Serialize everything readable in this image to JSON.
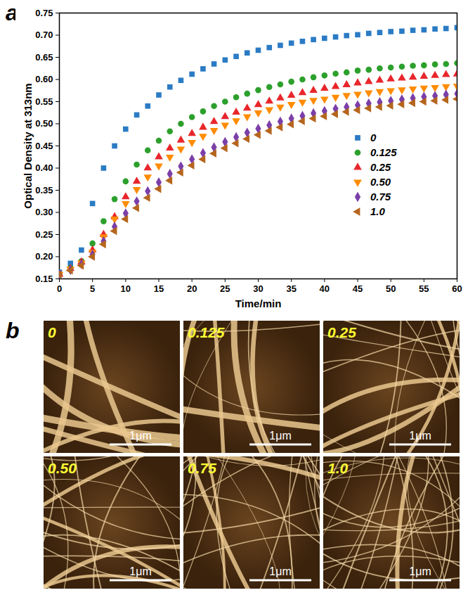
{
  "chart_data": {
    "type": "scatter",
    "panel_label": "a",
    "x_label": "Time/min",
    "y_label": "Optical Density at 313nm",
    "x": [
      0,
      1.67,
      3.33,
      5,
      6.67,
      8.33,
      10,
      11.67,
      13.33,
      15,
      16.67,
      18.33,
      20,
      21.67,
      23.33,
      25,
      26.67,
      28.33,
      30,
      31.67,
      33.33,
      35,
      36.67,
      38.33,
      40,
      41.67,
      43.33,
      45,
      46.67,
      48.33,
      50,
      51.67,
      53.33,
      55,
      56.67,
      58.33,
      60
    ],
    "series": [
      {
        "name": "0",
        "color": "#2b7bc4",
        "marker": "square",
        "values": [
          0.165,
          0.185,
          0.215,
          0.32,
          0.4,
          0.45,
          0.488,
          0.52,
          0.54,
          0.565,
          0.583,
          0.598,
          0.612,
          0.624,
          0.635,
          0.644,
          0.652,
          0.66,
          0.666,
          0.672,
          0.677,
          0.682,
          0.686,
          0.69,
          0.693,
          0.696,
          0.699,
          0.701,
          0.704,
          0.706,
          0.708,
          0.709,
          0.711,
          0.712,
          0.714,
          0.715,
          0.717
        ]
      },
      {
        "name": "0.125",
        "color": "#2ca02c",
        "marker": "circle",
        "values": [
          0.16,
          0.175,
          0.19,
          0.23,
          0.28,
          0.33,
          0.37,
          0.408,
          0.44,
          0.462,
          0.483,
          0.5,
          0.515,
          0.528,
          0.54,
          0.55,
          0.56,
          0.568,
          0.576,
          0.583,
          0.589,
          0.595,
          0.6,
          0.605,
          0.609,
          0.613,
          0.616,
          0.62,
          0.622,
          0.625,
          0.627,
          0.629,
          0.631,
          0.632,
          0.634,
          0.635,
          0.637
        ]
      },
      {
        "name": "0.25",
        "color": "#e8262b",
        "marker": "triangle-up",
        "values": [
          0.16,
          0.173,
          0.188,
          0.215,
          0.25,
          0.29,
          0.335,
          0.37,
          0.4,
          0.425,
          0.445,
          0.463,
          0.478,
          0.492,
          0.505,
          0.516,
          0.526,
          0.535,
          0.543,
          0.551,
          0.558,
          0.564,
          0.57,
          0.575,
          0.58,
          0.584,
          0.588,
          0.592,
          0.595,
          0.598,
          0.601,
          0.603,
          0.605,
          0.607,
          0.609,
          0.611,
          0.612
        ]
      },
      {
        "name": "0.50",
        "color": "#ff8c00",
        "marker": "triangle-down",
        "values": [
          0.16,
          0.172,
          0.186,
          0.21,
          0.245,
          0.285,
          0.32,
          0.352,
          0.38,
          0.405,
          0.425,
          0.443,
          0.458,
          0.472,
          0.485,
          0.497,
          0.507,
          0.516,
          0.525,
          0.532,
          0.538,
          0.544,
          0.549,
          0.553,
          0.556,
          0.56,
          0.564,
          0.567,
          0.57,
          0.573,
          0.575,
          0.577,
          0.579,
          0.581,
          0.582,
          0.584,
          0.585
        ]
      },
      {
        "name": "0.75",
        "color": "#7b3fa8",
        "marker": "diamond",
        "values": [
          0.16,
          0.17,
          0.183,
          0.205,
          0.235,
          0.268,
          0.298,
          0.325,
          0.348,
          0.368,
          0.387,
          0.404,
          0.42,
          0.434,
          0.447,
          0.459,
          0.47,
          0.48,
          0.489,
          0.497,
          0.505,
          0.512,
          0.518,
          0.524,
          0.529,
          0.534,
          0.538,
          0.542,
          0.546,
          0.549,
          0.552,
          0.555,
          0.558,
          0.561,
          0.563,
          0.566,
          0.568
        ]
      },
      {
        "name": "1.0",
        "color": "#b5651d",
        "marker": "triangle-left",
        "values": [
          0.16,
          0.169,
          0.18,
          0.2,
          0.228,
          0.258,
          0.285,
          0.31,
          0.333,
          0.353,
          0.372,
          0.39,
          0.406,
          0.42,
          0.433,
          0.445,
          0.456,
          0.466,
          0.475,
          0.484,
          0.492,
          0.499,
          0.506,
          0.512,
          0.517,
          0.522,
          0.527,
          0.531,
          0.535,
          0.538,
          0.541,
          0.544,
          0.547,
          0.55,
          0.552,
          0.554,
          0.556
        ]
      }
    ],
    "xlim": [
      0,
      60
    ],
    "xticks": [
      0,
      5,
      10,
      15,
      20,
      25,
      30,
      35,
      40,
      45,
      50,
      55,
      60
    ],
    "ylim": [
      0.15,
      0.75
    ],
    "yticks": [
      0.15,
      {
        "value": 0.2,
        "label": "0.20"
      },
      0.25,
      {
        "value": 0.3,
        "label": "0.30"
      },
      0.35,
      {
        "value": 0.4,
        "label": "0.40"
      },
      0.45,
      {
        "value": 0.5,
        "label": "0.50"
      },
      0.55,
      {
        "value": 0.6,
        "label": "0.60"
      },
      0.65,
      {
        "value": 0.7,
        "label": "0.70"
      },
      0.75
    ],
    "grid": false,
    "legend": "right"
  },
  "image_panels": {
    "panel_label": "b",
    "scale_bar": "1μm",
    "labels": [
      "0",
      "0.125",
      "0.25",
      "0.50",
      "0.75",
      "1.0"
    ]
  }
}
